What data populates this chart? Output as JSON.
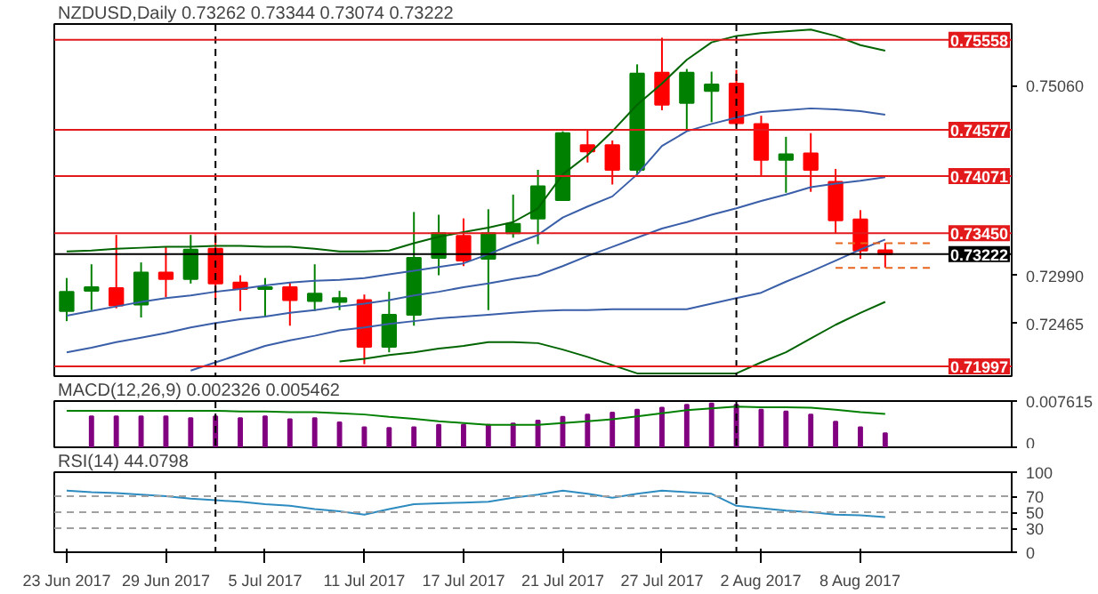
{
  "chart_data": [
    {
      "type": "candlestick",
      "title": "NZDUSD,Daily",
      "annotations": [
        "0.73262 0.73344 0.73074 0.73222"
      ],
      "categories": [
        null,
        null,
        null,
        null,
        null,
        null,
        null,
        null,
        null,
        null,
        null,
        null,
        null,
        null,
        null,
        null,
        null,
        null,
        null,
        null,
        null,
        null,
        null,
        null,
        null,
        null,
        null,
        null,
        null,
        null,
        null,
        null,
        null,
        null,
        null,
        null
      ],
      "ohlc": [
        [
          0.726,
          0.7296,
          0.7249,
          0.7281
        ],
        [
          0.7282,
          0.7311,
          0.7261,
          0.7286
        ],
        [
          0.7285,
          0.7343,
          0.7263,
          0.7266
        ],
        [
          0.7267,
          0.7313,
          0.7253,
          0.7302
        ],
        [
          0.7302,
          0.733,
          0.7275,
          0.7295
        ],
        [
          0.7295,
          0.7343,
          0.729,
          0.7327
        ],
        [
          0.7328,
          0.7345,
          0.7273,
          0.729
        ],
        [
          0.7291,
          0.7299,
          0.726,
          0.7284
        ],
        [
          0.7284,
          0.7296,
          0.7253,
          0.7286
        ],
        [
          0.7286,
          0.7291,
          0.7244,
          0.7272
        ],
        [
          0.7271,
          0.7311,
          0.726,
          0.7279
        ],
        [
          0.727,
          0.7282,
          0.7261,
          0.7274
        ],
        [
          0.7272,
          0.7278,
          0.7202,
          0.7221
        ],
        [
          0.7221,
          0.7281,
          0.7215,
          0.7256
        ],
        [
          0.7256,
          0.7368,
          0.7244,
          0.7318
        ],
        [
          0.7318,
          0.7365,
          0.7299,
          0.7345
        ],
        [
          0.7342,
          0.7361,
          0.7309,
          0.7315
        ],
        [
          0.7317,
          0.7371,
          0.7261,
          0.7345
        ],
        [
          0.7345,
          0.7387,
          0.734,
          0.7355
        ],
        [
          0.7361,
          0.7414,
          0.7333,
          0.7396
        ],
        [
          0.7381,
          0.7456,
          0.738,
          0.7454
        ],
        [
          0.7441,
          0.7457,
          0.7422,
          0.7434
        ],
        [
          0.7441,
          0.7446,
          0.7398,
          0.7414
        ],
        [
          0.7414,
          0.7529,
          0.7409,
          0.7519
        ],
        [
          0.752,
          0.7558,
          0.7479,
          0.7485
        ],
        [
          0.7487,
          0.7524,
          0.7457,
          0.752
        ],
        [
          0.75,
          0.7521,
          0.7466,
          0.7507
        ],
        [
          0.7508,
          0.7523,
          0.7462,
          0.7465
        ],
        [
          0.7464,
          0.7473,
          0.7407,
          0.7425
        ],
        [
          0.7425,
          0.745,
          0.7389,
          0.7431
        ],
        [
          0.7432,
          0.7454,
          0.739,
          0.7414
        ],
        [
          0.7401,
          0.7415,
          0.7345,
          0.7359
        ],
        [
          0.736,
          0.737,
          0.7317,
          0.7326
        ],
        [
          0.73262,
          0.73344,
          0.73074,
          0.73222
        ],
        null,
        null
      ],
      "colors": [
        "#008000",
        "#008000",
        "#ff0000",
        "#008000",
        "#ff0000",
        "#008000",
        "#ff0000",
        "#ff0000",
        "#008000",
        "#ff0000",
        "#008000",
        "#008000",
        "#ff0000",
        "#008000",
        "#008000",
        "#008000",
        "#ff0000",
        "#008000",
        "#008000",
        "#008000",
        "#008000",
        "#ff0000",
        "#ff0000",
        "#008000",
        "#ff0000",
        "#008000",
        "#008000",
        "#ff0000",
        "#ff0000",
        "#008000",
        "#ff0000",
        "#ff0000",
        "#ff0000",
        "#ff0000",
        null,
        null
      ],
      "series": [
        {
          "type": "line",
          "color": "#006400",
          "values": [
            0.7325,
            0.7326,
            0.7328,
            0.7329,
            0.733,
            0.733,
            0.7331,
            0.7331,
            0.733,
            0.733,
            0.7328,
            0.7325,
            0.7325,
            0.7326,
            0.7334,
            0.7341,
            0.7346,
            0.7351,
            0.7357,
            0.7372,
            0.7409,
            0.743,
            0.7456,
            0.7485,
            0.7508,
            0.7534,
            0.7553,
            0.756,
            0.7563,
            0.7565,
            0.7567,
            0.756,
            0.755,
            0.7544,
            null,
            null
          ]
        },
        {
          "type": "line",
          "color": "#3a5fa8",
          "values": [
            0.7255,
            0.726,
            0.7265,
            0.727,
            0.7274,
            0.7277,
            0.7281,
            0.7284,
            0.7288,
            0.7291,
            0.7293,
            0.7294,
            0.7296,
            0.73,
            0.7304,
            0.7308,
            0.7312,
            0.7322,
            0.7333,
            0.7343,
            0.7362,
            0.7374,
            0.7385,
            0.7409,
            0.744,
            0.7456,
            0.7464,
            0.7471,
            0.7477,
            0.7479,
            0.7481,
            0.748,
            0.7478,
            0.7474,
            null,
            null
          ]
        },
        {
          "type": "line",
          "color": "#3a5fa8",
          "values": [
            0.7215,
            0.722,
            0.7226,
            0.7231,
            0.7236,
            0.7242,
            0.7247,
            0.7251,
            0.7254,
            0.7258,
            0.7261,
            0.7265,
            0.7268,
            0.7272,
            0.7277,
            0.7281,
            0.7286,
            0.729,
            0.7295,
            0.7299,
            0.7309,
            0.732,
            0.733,
            0.734,
            0.735,
            0.7357,
            0.7365,
            0.7372,
            0.738,
            0.7387,
            0.7395,
            0.7399,
            0.7402,
            0.7406,
            null,
            null
          ]
        },
        {
          "type": "line",
          "color": "#3a5fa8",
          "values": [
            null,
            null,
            null,
            null,
            null,
            0.7195,
            0.7204,
            0.7213,
            0.7222,
            0.7228,
            0.7233,
            0.7239,
            0.7242,
            0.7246,
            0.7249,
            0.7252,
            0.7254,
            0.7256,
            0.7258,
            0.726,
            0.7261,
            0.7261,
            0.7262,
            0.7262,
            0.7262,
            0.7262,
            0.7268,
            0.7274,
            0.728,
            0.7292,
            0.7303,
            0.7315,
            0.7327,
            0.7338,
            null,
            null
          ]
        },
        {
          "type": "line",
          "color": "#006400",
          "values": [
            null,
            null,
            null,
            null,
            null,
            null,
            null,
            null,
            null,
            null,
            null,
            0.7205,
            0.7208,
            0.7212,
            0.7215,
            0.7219,
            0.7222,
            0.7226,
            0.7226,
            0.7225,
            0.7218,
            0.721,
            0.7201,
            0.7192,
            0.7192,
            0.7192,
            0.7192,
            0.7192,
            0.7204,
            0.7215,
            0.723,
            0.7245,
            0.7258,
            0.727,
            null,
            null
          ]
        },
        {
          "type": "line",
          "color": "#e8641c",
          "line_style": "dashed",
          "values": [
            null,
            null,
            null,
            null,
            null,
            null,
            null,
            null,
            null,
            null,
            null,
            null,
            null,
            null,
            null,
            null,
            null,
            null,
            null,
            null,
            null,
            null,
            null,
            null,
            null,
            null,
            null,
            null,
            null,
            null,
            null,
            0.7334,
            0.7334,
            0.7334,
            0.7334,
            0.7334
          ]
        },
        {
          "type": "line",
          "color": "#e8641c",
          "line_style": "dashed",
          "values": [
            null,
            null,
            null,
            null,
            null,
            null,
            null,
            null,
            null,
            null,
            null,
            null,
            null,
            null,
            null,
            null,
            null,
            null,
            null,
            null,
            null,
            null,
            null,
            null,
            null,
            null,
            null,
            null,
            null,
            null,
            null,
            0.7307,
            0.7307,
            0.7307,
            0.7307,
            0.7307
          ]
        }
      ],
      "ylim": [
        0.7189,
        0.7573
      ],
      "yticks": [
        {
          "value": 0.7506,
          "label": "0.75060"
        },
        {
          "value": 0.7299,
          "label": "0.72990"
        },
        {
          "value": 0.72465,
          "label": "0.72465"
        }
      ],
      "ref_lines": [
        {
          "axis": "y",
          "value": 0.75558,
          "label": "0.75558",
          "color": "#e31a1c"
        },
        {
          "axis": "y",
          "value": 0.74577,
          "label": "0.74577",
          "color": "#e31a1c"
        },
        {
          "axis": "y",
          "value": 0.74071,
          "label": "0.74071",
          "color": "#e31a1c"
        },
        {
          "axis": "y",
          "value": 0.7345,
          "label": "0.73450",
          "color": "#e31a1c"
        },
        {
          "axis": "y",
          "value": 0.73222,
          "label": "0.73222",
          "color": "#000000"
        },
        {
          "axis": "y",
          "value": 0.71997,
          "label": "0.71997",
          "color": "#e31a1c"
        }
      ],
      "tick_labels": "y"
    },
    {
      "type": "bar",
      "title": "MACD(12,26,9) 0.002326 0.005462",
      "categories": [
        null,
        null,
        null,
        null,
        null,
        null,
        null,
        null,
        null,
        null,
        null,
        null,
        null,
        null,
        null,
        null,
        null,
        null,
        null,
        null,
        null,
        null,
        null,
        null,
        null,
        null,
        null,
        null,
        null,
        null,
        null,
        null,
        null,
        null,
        null,
        null
      ],
      "series": [
        {
          "color": "#800080",
          "values": [
            null,
            0.0051,
            0.0051,
            0.0051,
            0.0051,
            0.0048,
            0.0051,
            0.0048,
            0.0051,
            0.0046,
            0.0048,
            0.0041,
            0.0033,
            0.0032,
            0.0033,
            0.0037,
            0.0037,
            0.0037,
            0.0039,
            0.0044,
            0.005,
            0.0054,
            0.0057,
            0.0062,
            0.0065,
            0.007,
            0.0072,
            0.007,
            0.0062,
            0.0059,
            0.0054,
            0.0042,
            0.0033,
            0.0023,
            null,
            null
          ]
        },
        {
          "type": "line",
          "color": "#008000",
          "values": [
            0.006,
            0.006,
            0.006,
            0.006,
            0.006,
            0.006,
            0.006,
            0.0059,
            0.0059,
            0.0058,
            0.0058,
            0.0056,
            0.0054,
            0.005,
            0.0047,
            0.0043,
            0.004,
            0.0037,
            0.0037,
            0.0037,
            0.004,
            0.0043,
            0.0046,
            0.0051,
            0.0056,
            0.0061,
            0.0064,
            0.0067,
            0.0066,
            0.0066,
            0.0065,
            0.0062,
            0.0058,
            0.0055,
            null,
            null
          ]
        }
      ],
      "ylim": [
        0,
        0.007615
      ],
      "yticks": [
        0,
        {
          "value": 0.007615,
          "label": "0.007615"
        }
      ],
      "tick_labels": "y"
    },
    {
      "type": "line",
      "title": "RSI(14) 44.0798",
      "categories": [
        "23 Jun 2017",
        null,
        null,
        null,
        "29 Jun 2017",
        null,
        null,
        null,
        "5 Jul 2017",
        null,
        null,
        null,
        "11 Jul 2017",
        null,
        null,
        null,
        "17 Jul 2017",
        null,
        null,
        null,
        "21 Jul 2017",
        null,
        null,
        null,
        "27 Jul 2017",
        null,
        null,
        null,
        "2 Aug 2017",
        null,
        null,
        null,
        "8 Aug 2017",
        null,
        null,
        null
      ],
      "series": [
        {
          "color": "#2e8bc0",
          "values": [
            77,
            75,
            74,
            72,
            70,
            67,
            65,
            63,
            60,
            58,
            54,
            51,
            47,
            54,
            60,
            61,
            62,
            63,
            68,
            72,
            77,
            73,
            68,
            73,
            77,
            75,
            73,
            58,
            55,
            52,
            50,
            47,
            46,
            44,
            null,
            null
          ]
        }
      ],
      "ylim": [
        0,
        100
      ],
      "yticks": [
        0,
        30,
        50,
        70,
        100
      ],
      "ref_lines": [
        {
          "axis": "y",
          "value": 70,
          "color": "#a0a0a0",
          "line_style": "dashed"
        },
        {
          "axis": "y",
          "value": 50,
          "color": "#a0a0a0",
          "line_style": "dashed"
        },
        {
          "axis": "y",
          "value": 30,
          "color": "#a0a0a0",
          "line_style": "dashed"
        }
      ]
    }
  ]
}
